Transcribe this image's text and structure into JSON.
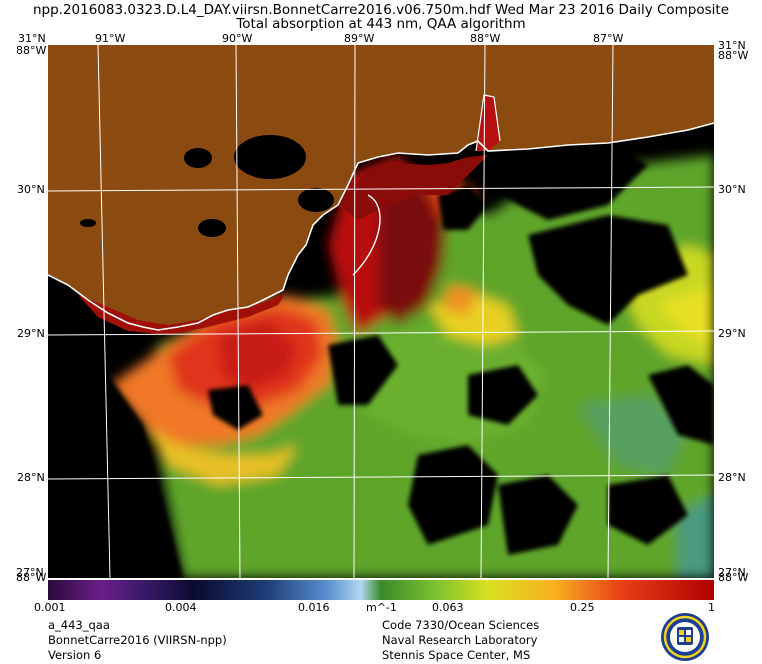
{
  "header": {
    "line1": "npp.2016083.0323.D.L4_DAY.viirsn.BonnetCarre2016.v06.750m.hdf   Wed Mar 23 2016 Daily Composite",
    "line2": "Total absorption at 443 nm, QAA algorithm"
  },
  "grid": {
    "lon_top": [
      "91°W",
      "90°W",
      "89°W",
      "88°W",
      "87°W"
    ],
    "lat_left": [
      "31°N",
      "30°N",
      "29°N",
      "28°N",
      "27°N"
    ],
    "lat_right": [
      "31°N",
      "30°N",
      "29°N",
      "28°N",
      "27°N"
    ],
    "corner_lon": "88°W",
    "edge_lon": "88°W"
  },
  "colorbar": {
    "ticks": [
      "0.001",
      "0.004",
      "0.016",
      "m^-1",
      "0.063",
      "0.25",
      "1"
    ],
    "colors": [
      "#2a0a3a",
      "#6a1f8a",
      "#3c1a6a",
      "#0a0a30",
      "#1f3f7a",
      "#5a8fd0",
      "#b0d8f0",
      "#3a8a2a",
      "#7ac030",
      "#d8e020",
      "#f8b020",
      "#e84018",
      "#b00000"
    ]
  },
  "colors": {
    "land": "#8b4a0f",
    "nodata": "#000000",
    "coastline": "#ffffff"
  },
  "footer": {
    "left": [
      "a_443_qaa",
      "BonnetCarre2016 (VIIRSN-npp)",
      "Version 6"
    ],
    "right": [
      "Code 7330/Ocean Sciences",
      "Naval Research Laboratory",
      "Stennis Space Center, MS"
    ]
  },
  "seal_icon": "nrl-seal-icon"
}
